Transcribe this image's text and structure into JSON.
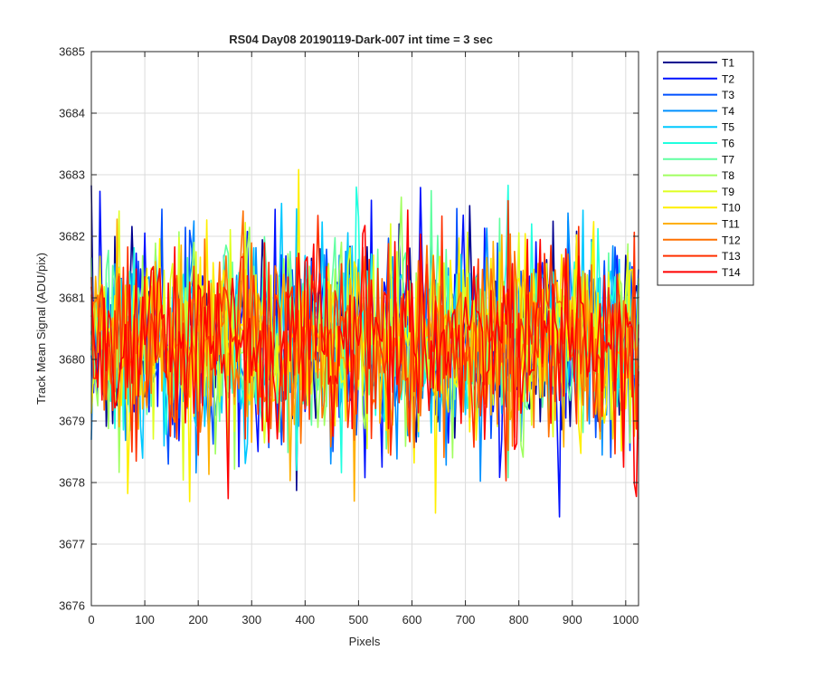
{
  "chart_data": {
    "type": "line",
    "title": "RS04 Day08 20190119-Dark-007 int time = 3 sec",
    "xlabel": "Pixels",
    "ylabel": "Track Mean Signal (ADU/pix)",
    "xlim": [
      0,
      1024
    ],
    "ylim": [
      3676,
      3685
    ],
    "xticks": [
      0,
      100,
      200,
      300,
      400,
      500,
      600,
      700,
      800,
      900,
      1000
    ],
    "yticks": [
      3676,
      3677,
      3678,
      3679,
      3680,
      3681,
      3682,
      3683,
      3684,
      3685
    ],
    "grid": true,
    "legend_position": "outside-top-right",
    "x": {
      "start": 0,
      "end": 1024,
      "step": 4
    },
    "noise_model": {
      "mean": 3680.3,
      "sigma": 0.78
    },
    "series": [
      {
        "name": "T1",
        "color": "#00008f",
        "seed": 11
      },
      {
        "name": "T2",
        "color": "#0010ff",
        "seed": 23
      },
      {
        "name": "T3",
        "color": "#0050ff",
        "seed": 37
      },
      {
        "name": "T4",
        "color": "#0090ff",
        "seed": 41
      },
      {
        "name": "T5",
        "color": "#00c8ff",
        "seed": 53
      },
      {
        "name": "T6",
        "color": "#20ffdf",
        "seed": 67
      },
      {
        "name": "T7",
        "color": "#60ffa0",
        "seed": 71
      },
      {
        "name": "T8",
        "color": "#a0ff60",
        "seed": 83
      },
      {
        "name": "T9",
        "color": "#dfff20",
        "seed": 97
      },
      {
        "name": "T10",
        "color": "#ffef00",
        "seed": 101
      },
      {
        "name": "T11",
        "color": "#ffaf00",
        "seed": 113
      },
      {
        "name": "T12",
        "color": "#ff7000",
        "seed": 127
      },
      {
        "name": "T13",
        "color": "#ff3000",
        "seed": 131
      },
      {
        "name": "T14",
        "color": "#ff0000",
        "seed": 149
      }
    ]
  }
}
